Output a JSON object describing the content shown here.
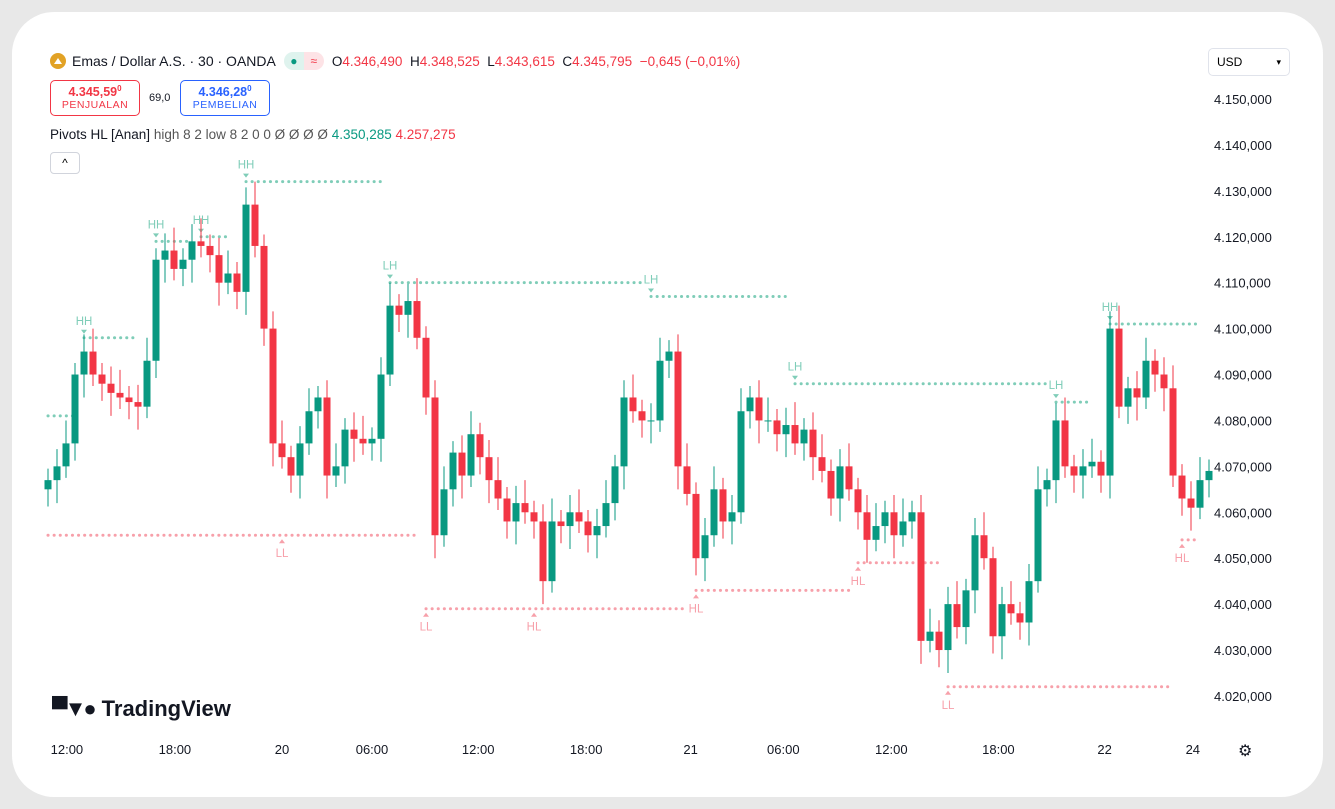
{
  "header": {
    "symbol": "Emas / Dollar A.S. · 30 · OANDA",
    "open_label": "O",
    "open": "4.346,490",
    "high_label": "H",
    "high": "4.348,525",
    "low_label": "L",
    "low": "4.343,615",
    "close_label": "C",
    "close": "4.345,795",
    "change": "−0,645 (−0,01%)",
    "market_status_icon": "green-dot",
    "delay_icon": "≈"
  },
  "trade": {
    "sell_price": "4.345,59",
    "sell_sup": "0",
    "sell_label": "PENJUALAN",
    "spread": "69,0",
    "buy_price": "4.346,28",
    "buy_sup": "0",
    "buy_label": "PEMBELIAN"
  },
  "indicator": {
    "name": "Pivots HL [Anan]",
    "params": "high 8 2 low 8 2 0 0  Ø Ø Ø Ø",
    "value1": "4.350,285",
    "value2": "4.257,275"
  },
  "collapse_label": "^",
  "currency": "USD",
  "brand": "TradingView",
  "colors": {
    "up": "#089981",
    "down": "#f23645",
    "pivot_high": "#7fcdb8",
    "pivot_low": "#f7a0aa"
  },
  "chart_data": {
    "type": "candlestick",
    "interval": "30",
    "y_ticks": [
      {
        "v": 4150,
        "t": "4.150,000"
      },
      {
        "v": 4140,
        "t": "4.140,000"
      },
      {
        "v": 4130,
        "t": "4.130,000"
      },
      {
        "v": 4120,
        "t": "4.120,000"
      },
      {
        "v": 4110,
        "t": "4.110,000"
      },
      {
        "v": 4100,
        "t": "4.100,000"
      },
      {
        "v": 4090,
        "t": "4.090,000"
      },
      {
        "v": 4080,
        "t": "4.080,000"
      },
      {
        "v": 4070,
        "t": "4.070,000"
      },
      {
        "v": 4060,
        "t": "4.060,000"
      },
      {
        "v": 4050,
        "t": "4.050,000"
      },
      {
        "v": 4040,
        "t": "4.040,000"
      },
      {
        "v": 4030,
        "t": "4.030,000"
      },
      {
        "v": 4020,
        "t": "4.020,000"
      }
    ],
    "x_ticks": [
      {
        "i": 2.1,
        "t": "12:00"
      },
      {
        "i": 14.1,
        "t": "18:00"
      },
      {
        "i": 26,
        "t": "20"
      },
      {
        "i": 36,
        "t": "06:00"
      },
      {
        "i": 47.8,
        "t": "12:00"
      },
      {
        "i": 59.8,
        "t": "18:00"
      },
      {
        "i": 71.4,
        "t": "21"
      },
      {
        "i": 81.7,
        "t": "06:00"
      },
      {
        "i": 93.7,
        "t": "12:00"
      },
      {
        "i": 105.6,
        "t": "18:00"
      },
      {
        "i": 117.4,
        "t": "22"
      },
      {
        "i": 127.2,
        "t": "24"
      }
    ],
    "first_open": 4065,
    "closes": [
      4067,
      4070,
      4075,
      4090,
      4095,
      4090,
      4088,
      4086,
      4085,
      4084,
      4083,
      4093,
      4115,
      4117,
      4113,
      4115,
      4119,
      4118,
      4116,
      4110,
      4112,
      4108,
      4127,
      4118,
      4100,
      4075,
      4072,
      4068,
      4075,
      4082,
      4085,
      4068,
      4070,
      4078,
      4076,
      4075,
      4076,
      4090,
      4105,
      4103,
      4106,
      4098,
      4085,
      4055,
      4065,
      4073,
      4068,
      4077,
      4072,
      4067,
      4063,
      4058,
      4062,
      4060,
      4058,
      4045,
      4058,
      4057,
      4060,
      4058,
      4055,
      4057,
      4062,
      4070,
      4085,
      4082,
      4080,
      4080,
      4093,
      4095,
      4070,
      4064,
      4050,
      4055,
      4065,
      4058,
      4060,
      4082,
      4085,
      4080,
      4080,
      4077,
      4079,
      4075,
      4078,
      4072,
      4069,
      4063,
      4070,
      4065,
      4060,
      4054,
      4057,
      4060,
      4055,
      4058,
      4060,
      4032,
      4034,
      4030,
      4040,
      4035,
      4043,
      4055,
      4050,
      4033,
      4040,
      4038,
      4036,
      4045,
      4065,
      4067,
      4080,
      4070,
      4068,
      4070,
      4071,
      4068,
      4100,
      4083,
      4087,
      4085,
      4093,
      4090,
      4087,
      4068,
      4063,
      4061,
      4067,
      4069
    ],
    "wick": 2.5,
    "pivots": [
      {
        "kind": "high",
        "label": "",
        "price": 4081,
        "from": 0,
        "to": 3
      },
      {
        "kind": "high",
        "label": "HH",
        "price": 4098,
        "from": 4,
        "to": 10
      },
      {
        "kind": "high",
        "label": "HH",
        "price": 4119,
        "from": 12,
        "to": 16
      },
      {
        "kind": "high",
        "label": "HH",
        "price": 4120,
        "from": 17,
        "to": 20
      },
      {
        "kind": "high",
        "label": "HH",
        "price": 4132,
        "from": 22,
        "to": 37
      },
      {
        "kind": "high",
        "label": "LH",
        "price": 4110,
        "from": 38,
        "to": 66
      },
      {
        "kind": "high",
        "label": "LH",
        "price": 4107,
        "from": 67,
        "to": 82
      },
      {
        "kind": "high",
        "label": "LH",
        "price": 4088,
        "from": 83,
        "to": 111
      },
      {
        "kind": "high",
        "label": "LH",
        "price": 4084,
        "from": 112,
        "to": 116
      },
      {
        "kind": "high",
        "label": "HH",
        "price": 4101,
        "from": 118,
        "to": 128
      },
      {
        "kind": "low",
        "label": "",
        "price": 4055,
        "from": 0,
        "to": 41
      },
      {
        "kind": "low",
        "label": "LL",
        "price": 4055,
        "from": 26,
        "to": 26
      },
      {
        "kind": "low",
        "label": "LL",
        "price": 4039,
        "from": 42,
        "to": 71
      },
      {
        "kind": "low",
        "label": "HL",
        "price": 4039,
        "from": 54,
        "to": 54
      },
      {
        "kind": "low",
        "label": "HL",
        "price": 4043,
        "from": 72,
        "to": 89
      },
      {
        "kind": "low",
        "label": "HL",
        "price": 4049,
        "from": 90,
        "to": 99
      },
      {
        "kind": "low",
        "label": "LL",
        "price": 4022,
        "from": 100,
        "to": 125
      },
      {
        "kind": "low",
        "label": "HL",
        "price": 4054,
        "from": 126,
        "to": 128
      }
    ]
  }
}
